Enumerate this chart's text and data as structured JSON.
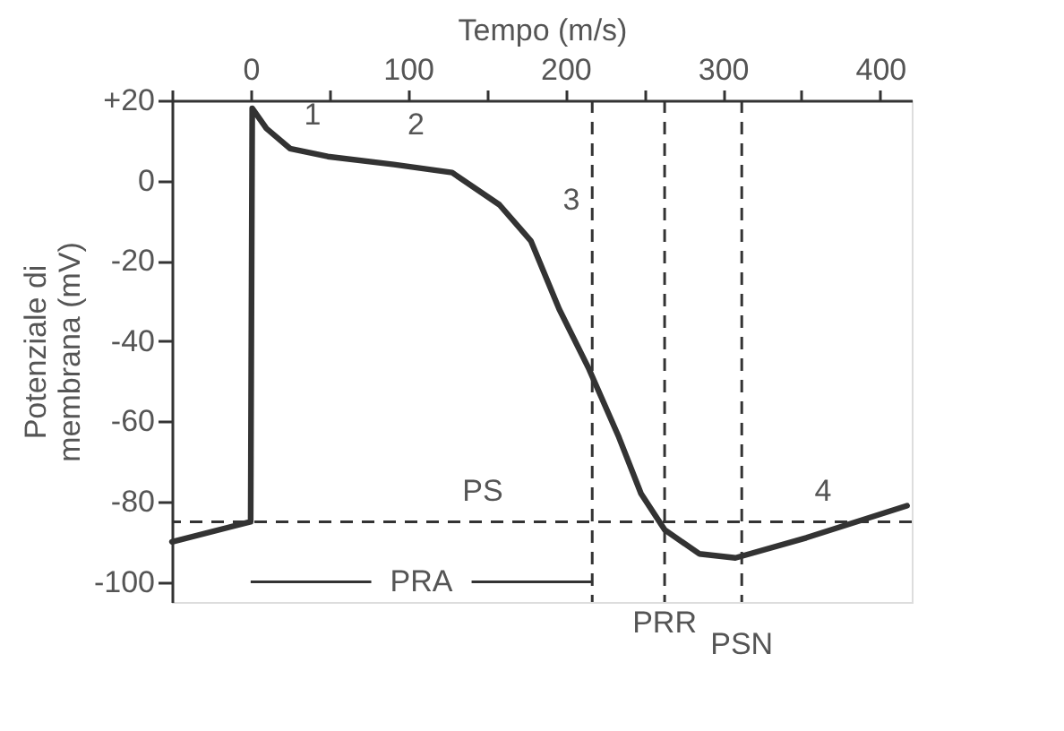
{
  "chart_data": {
    "type": "line",
    "xlabel": "Tempo (m/s)",
    "ylabel": "Potenziale di\nmembrana (mV)",
    "series": [
      {
        "color": "#333333",
        "x": [
          -50,
          0,
          1,
          10,
          25,
          49,
          91,
          128,
          158,
          178,
          196,
          215,
          234,
          248,
          263,
          285,
          308,
          353,
          417
        ],
        "values": [
          -90,
          -85,
          18,
          13,
          8,
          6,
          4,
          2,
          -6,
          -15,
          -32,
          -47,
          -64,
          -78,
          -87,
          -93,
          -94,
          -89,
          -81
        ]
      }
    ],
    "xlim": [
      -50,
      420
    ],
    "xticks": [
      {
        "value": -50,
        "label": null
      },
      0,
      {
        "value": 50,
        "label": null
      },
      100,
      {
        "value": 150,
        "label": null
      },
      200,
      {
        "value": 250,
        "label": null
      },
      300,
      {
        "value": 350,
        "label": null
      },
      400
    ],
    "ylim": [
      -105,
      20
    ],
    "yticks": [
      -100,
      -80,
      -60,
      -40,
      -20,
      0,
      {
        "value": 20,
        "label": "+20"
      }
    ],
    "grid": false,
    "marker": "none",
    "line_style": "solid",
    "ref_lines": [
      {
        "axis": "y",
        "value": -85,
        "line_style": "dashed",
        "color": "#333333"
      },
      {
        "axis": "x",
        "value": 217,
        "line_style": "dashed",
        "color": "#333333"
      },
      {
        "axis": "x",
        "value": 263,
        "label": "PRR",
        "line_style": "dashed",
        "color": "#333333"
      },
      {
        "axis": "x",
        "value": 312,
        "label": "PSN",
        "line_style": "dashed",
        "color": "#333333"
      }
    ],
    "annotations": [
      "1",
      "2",
      "3",
      "4",
      "PS",
      {
        "text": "PRA",
        "x": 217,
        "y": -100
      }
    ]
  }
}
